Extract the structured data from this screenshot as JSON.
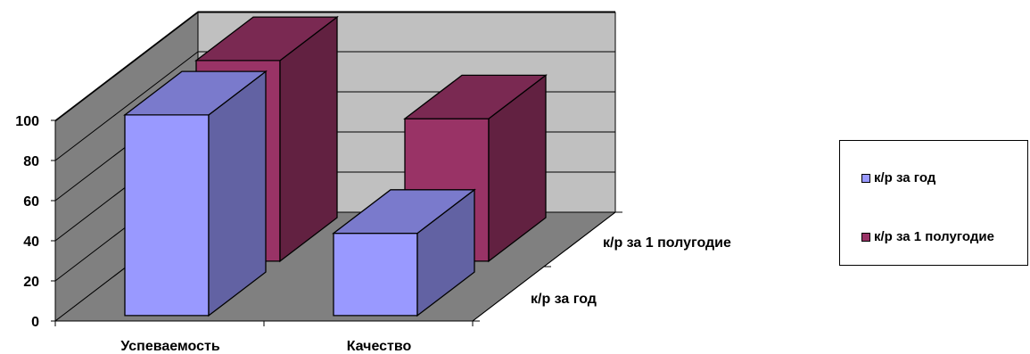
{
  "chart_data": {
    "type": "bar",
    "three_d": true,
    "categories": [
      "Успеваемость",
      "Качество"
    ],
    "series": [
      {
        "name": "к/р за год",
        "values": [
          100,
          41
        ],
        "color": "#9999ff"
      },
      {
        "name": "к/р за 1 полугодие",
        "values": [
          100,
          71
        ],
        "color": "#993366"
      }
    ],
    "depth_labels": [
      "к/р за год",
      "к/р за 1 полугодие"
    ],
    "ylim": [
      0,
      100
    ],
    "yticks": [
      0,
      20,
      40,
      60,
      80,
      100
    ],
    "grid": true,
    "legend_position": "right"
  },
  "legend": {
    "items": [
      {
        "label": "к/р за год",
        "color": "#9999ff"
      },
      {
        "label": "к/р за 1 полугодие",
        "color": "#993366"
      }
    ]
  }
}
